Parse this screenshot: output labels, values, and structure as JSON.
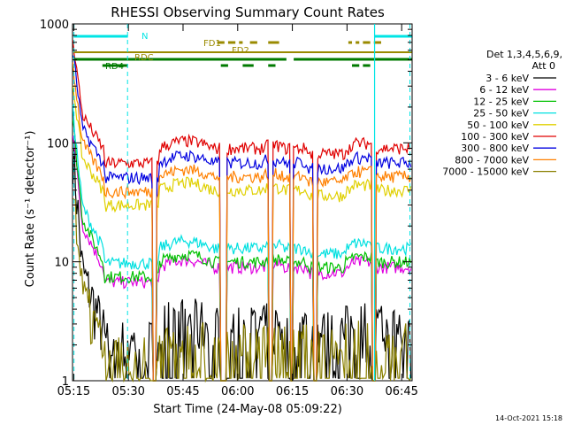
{
  "chart_data": {
    "type": "line",
    "title": "RHESSI Observing Summary Count Rates",
    "xlabel": "Start Time (24-May-08 05:09:22)",
    "ylabel": "Count Rate (s⁻¹ detector⁻¹)",
    "yscale": "log",
    "ylim": [
      1,
      1000
    ],
    "xlim_minutes": [
      5.3,
      98.5
    ],
    "x_ticks": [
      {
        "label": "05:15",
        "min": 15
      },
      {
        "label": "05:30",
        "min": 30
      },
      {
        "label": "05:45",
        "min": 45
      },
      {
        "label": "06:00",
        "min": 60
      },
      {
        "label": "06:15",
        "min": 75
      },
      {
        "label": "06:30",
        "min": 90
      },
      {
        "label": "06:45",
        "min": 105
      }
    ],
    "y_ticks": [
      {
        "label": "1",
        "v": 1
      },
      {
        "label": "10",
        "v": 10
      },
      {
        "label": "100",
        "v": 100
      },
      {
        "label": "1000",
        "v": 1000
      }
    ],
    "legend_header": [
      "Det 1,3,4,5,6,9,",
      "Att 0"
    ],
    "legend_position": "right",
    "footer_date": "14-Oct-2021 15:18",
    "flags": [
      {
        "label": "N",
        "color": "#00e5e5"
      },
      {
        "label": "FD1",
        "color": "#9a8a00"
      },
      {
        "label": "FD2",
        "color": "#9a8a00"
      },
      {
        "label": "RDC",
        "color": "#9a8a00"
      },
      {
        "label": "RD4",
        "color": "#007a00"
      }
    ],
    "series": [
      {
        "name": "3 - 6 keV",
        "color": "#000000",
        "peak": 110,
        "base": 2.8,
        "noise": 1
      },
      {
        "name": "6 - 12 keV",
        "color": "#e000e0",
        "peak": 135,
        "base": 9,
        "noise": 1
      },
      {
        "name": "12 - 25 keV",
        "color": "#00c000",
        "peak": 170,
        "base": 10,
        "noise": 1
      },
      {
        "name": "25 - 50 keV",
        "color": "#00e0e0",
        "peak": 200,
        "base": 13,
        "noise": 1
      },
      {
        "name": "50 - 100 keV",
        "color": "#e0d000",
        "peak": 330,
        "base": 40,
        "noise": 1
      },
      {
        "name": "100 - 300 keV",
        "color": "#e00000",
        "peak": 800,
        "base": 90,
        "noise": 1
      },
      {
        "name": "300 - 800 keV",
        "color": "#0000e0",
        "peak": 620,
        "base": 68,
        "noise": 1
      },
      {
        "name": "800 - 7000 keV",
        "color": "#ff8000",
        "peak": 480,
        "base": 52,
        "noise": 1
      },
      {
        "name": "7000 - 15000 keV",
        "color": "#8a8000",
        "peak": 55,
        "base": 2,
        "noise": 1
      }
    ]
  }
}
